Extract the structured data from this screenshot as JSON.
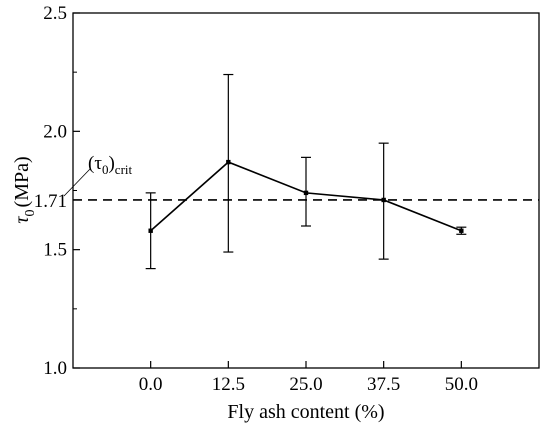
{
  "chart_data": {
    "type": "line",
    "categories": [
      "0.0",
      "12.5",
      "25.0",
      "37.5",
      "50.0"
    ],
    "x": [
      0,
      12.5,
      25,
      37.5,
      50
    ],
    "series": [
      {
        "values": [
          1.58,
          1.87,
          1.74,
          1.71,
          1.58
        ],
        "error_low": [
          1.42,
          1.49,
          1.6,
          1.46,
          1.565
        ],
        "error_high": [
          1.74,
          2.24,
          1.89,
          1.95,
          1.595
        ],
        "color": "#000000"
      }
    ],
    "xlabel": "Fly ash content (%)",
    "ylabel_symbol": "τ",
    "ylabel_sub": "0",
    "ylabel_unit": "(MPa)",
    "xlim": [
      -12.5,
      62.5
    ],
    "ylim": [
      1.0,
      2.5
    ],
    "yticks": [
      "1.0",
      "1.5",
      "2.0",
      "2.5"
    ],
    "reference_line": {
      "value": 1.71,
      "label": "1.71",
      "style": "dashed",
      "annotation_symbol": "(τ",
      "annotation_sub0": "0",
      "annotation_close": ")",
      "annotation_subcrit": "crit"
    },
    "grid": false,
    "legend": "none"
  }
}
